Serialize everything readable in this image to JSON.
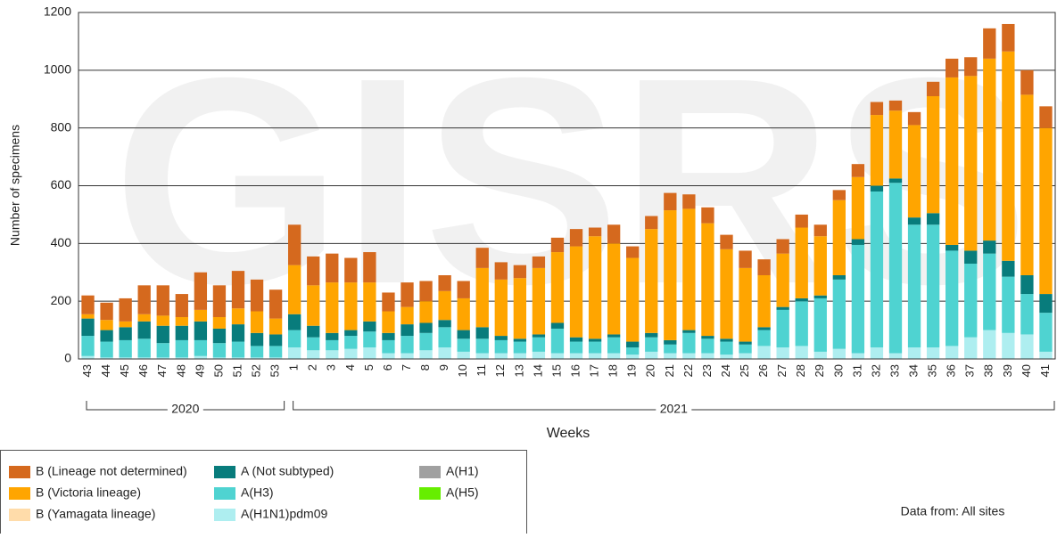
{
  "chart_data": {
    "type": "stacked-bar",
    "watermark": "GISRS",
    "y_label": "Number of specimens",
    "x_label": "Weeks",
    "note": "Data from: All sites",
    "ylim": [
      0,
      1200
    ],
    "yticks": [
      0,
      200,
      400,
      600,
      800,
      1000,
      1200
    ],
    "grid": true,
    "groups": [
      {
        "label": "2020",
        "categories": [
          "43",
          "44",
          "45",
          "46",
          "47",
          "48",
          "49",
          "50",
          "51",
          "52",
          "53"
        ]
      },
      {
        "label": "2021",
        "categories": [
          "1",
          "2",
          "3",
          "4",
          "5",
          "6",
          "7",
          "8",
          "9",
          "10",
          "11",
          "12",
          "13",
          "14",
          "15",
          "16",
          "17",
          "18",
          "19",
          "20",
          "21",
          "22",
          "23",
          "24",
          "25",
          "26",
          "27",
          "28",
          "29",
          "30",
          "31",
          "32",
          "33",
          "34",
          "35",
          "36",
          "37",
          "38",
          "39",
          "40",
          "41"
        ]
      }
    ],
    "series": [
      {
        "name": "A(H1N1)pdm09",
        "color": "#aeeef0",
        "values": [
          10,
          5,
          5,
          5,
          5,
          5,
          10,
          5,
          5,
          5,
          5,
          40,
          30,
          30,
          35,
          40,
          20,
          20,
          30,
          40,
          25,
          20,
          20,
          20,
          25,
          20,
          20,
          20,
          20,
          15,
          25,
          20,
          20,
          20,
          15,
          20,
          45,
          40,
          45,
          25,
          35,
          20,
          40,
          20,
          40,
          40,
          45,
          75,
          100,
          90,
          85,
          25
        ]
      },
      {
        "name": "A(H3)",
        "color": "#4fd3d1",
        "values": [
          70,
          55,
          60,
          65,
          50,
          60,
          55,
          50,
          55,
          40,
          40,
          60,
          45,
          35,
          45,
          55,
          45,
          60,
          60,
          70,
          45,
          50,
          45,
          40,
          50,
          85,
          40,
          40,
          55,
          25,
          50,
          30,
          70,
          50,
          45,
          30,
          55,
          130,
          155,
          185,
          240,
          375,
          540,
          590,
          425,
          425,
          330,
          255,
          265,
          195,
          140,
          135
        ]
      },
      {
        "name": "A (Not subtyped)",
        "color": "#087c7c",
        "values": [
          60,
          40,
          45,
          60,
          60,
          50,
          65,
          50,
          60,
          45,
          40,
          55,
          40,
          25,
          20,
          35,
          25,
          40,
          35,
          25,
          30,
          40,
          15,
          10,
          10,
          20,
          15,
          10,
          10,
          20,
          15,
          15,
          10,
          10,
          10,
          10,
          10,
          10,
          10,
          10,
          15,
          20,
          20,
          15,
          25,
          40,
          20,
          45,
          45,
          55,
          65,
          65
        ]
      },
      {
        "name": "A(H1)",
        "color": "#a0a0a0",
        "values": [
          0,
          0,
          0,
          0,
          0,
          0,
          0,
          0,
          0,
          0,
          0,
          0,
          0,
          0,
          0,
          0,
          0,
          0,
          0,
          0,
          0,
          0,
          0,
          0,
          0,
          0,
          0,
          0,
          0,
          0,
          0,
          0,
          0,
          0,
          0,
          0,
          0,
          0,
          0,
          0,
          0,
          0,
          0,
          0,
          0,
          0,
          0,
          0,
          0,
          0,
          0,
          0
        ]
      },
      {
        "name": "A(H5)",
        "color": "#66ee00",
        "values": [
          0,
          0,
          0,
          0,
          0,
          0,
          0,
          0,
          0,
          0,
          0,
          0,
          0,
          0,
          0,
          0,
          0,
          0,
          0,
          0,
          0,
          0,
          0,
          0,
          0,
          0,
          0,
          0,
          0,
          0,
          0,
          0,
          0,
          0,
          0,
          0,
          0,
          0,
          0,
          0,
          0,
          0,
          0,
          0,
          0,
          0,
          0,
          0,
          0,
          0,
          0,
          0
        ]
      },
      {
        "name": "B (Yamagata lineage)",
        "color": "#ffdcaa",
        "values": [
          0,
          0,
          0,
          0,
          0,
          0,
          0,
          0,
          0,
          0,
          0,
          0,
          0,
          0,
          0,
          0,
          0,
          0,
          0,
          0,
          0,
          0,
          0,
          0,
          0,
          0,
          0,
          0,
          0,
          0,
          0,
          0,
          0,
          0,
          0,
          0,
          0,
          0,
          0,
          0,
          0,
          0,
          0,
          0,
          0,
          0,
          0,
          0,
          0,
          0,
          0,
          0
        ]
      },
      {
        "name": "B (Victoria lineage)",
        "color": "#ffa500",
        "values": [
          15,
          35,
          20,
          25,
          35,
          30,
          40,
          40,
          55,
          75,
          55,
          170,
          140,
          175,
          165,
          135,
          75,
          60,
          75,
          100,
          110,
          205,
          195,
          210,
          230,
          245,
          315,
          355,
          315,
          290,
          360,
          450,
          420,
          390,
          310,
          255,
          180,
          185,
          245,
          205,
          260,
          215,
          245,
          235,
          320,
          405,
          580,
          605,
          630,
          725,
          625,
          575
        ]
      },
      {
        "name": "B (Lineage not determined)",
        "color": "#d5691e",
        "values": [
          65,
          60,
          80,
          100,
          105,
          80,
          130,
          110,
          130,
          110,
          100,
          140,
          100,
          100,
          85,
          105,
          65,
          85,
          70,
          55,
          60,
          70,
          60,
          45,
          40,
          50,
          60,
          30,
          65,
          40,
          45,
          60,
          50,
          55,
          50,
          60,
          55,
          50,
          45,
          40,
          35,
          45,
          45,
          35,
          45,
          50,
          65,
          65,
          105,
          95,
          85,
          75
        ]
      }
    ]
  }
}
